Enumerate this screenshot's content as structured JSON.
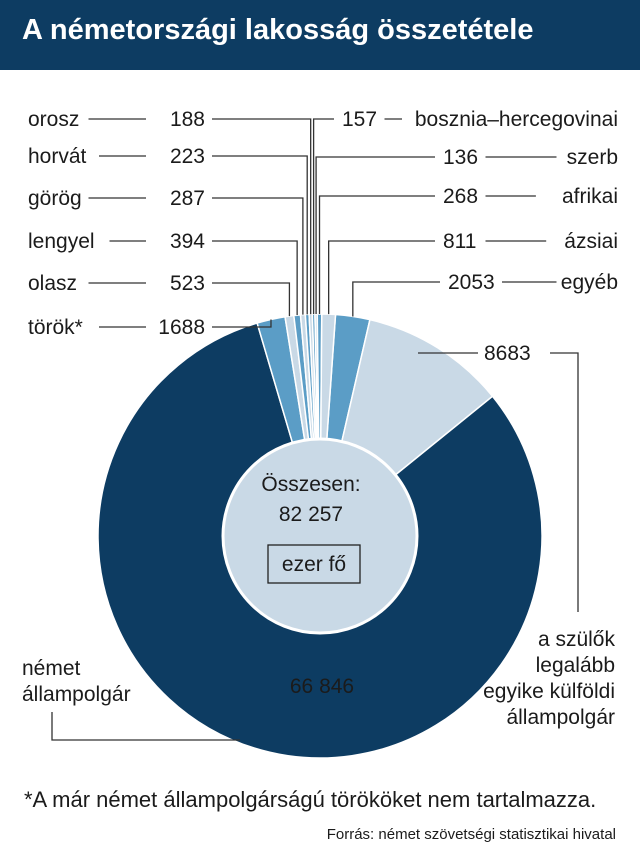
{
  "title": "A németországi lakosság összetétele",
  "footnote": "*A már német állampolgárságú törököket nem tartalmazza.",
  "source": "Forrás: német szövetségi statisztikai hivatal",
  "colors": {
    "header_bg": "#0d3c62",
    "german": "#0d3c62",
    "parent_foreign": "#c9d9e6",
    "accent": "#5b9dc6",
    "center": "#c9d9e6"
  },
  "chart_data": {
    "type": "pie",
    "variant": "donut",
    "unit": "ezer fő",
    "total_label": "Összesen:",
    "total_value": "82 257",
    "slices": [
      {
        "name": "egyéb",
        "value": 2053,
        "value_label": "2053",
        "color": "#5b9dc6"
      },
      {
        "name": "a szülők legalább egyike külföldi állampolgár",
        "value": 8683,
        "value_label": "8683",
        "color": "#c9d9e6"
      },
      {
        "name": "német állampolgár",
        "value": 66846,
        "value_label": "66 846",
        "color": "#0d3c62"
      },
      {
        "name": "török*",
        "value": 1688,
        "value_label": "1688",
        "color": "#5b9dc6"
      },
      {
        "name": "olasz",
        "value": 523,
        "value_label": "523",
        "color": "#c9d9e6"
      },
      {
        "name": "lengyel",
        "value": 394,
        "value_label": "394",
        "color": "#5b9dc6"
      },
      {
        "name": "görög",
        "value": 287,
        "value_label": "287",
        "color": "#c9d9e6"
      },
      {
        "name": "horvát",
        "value": 223,
        "value_label": "223",
        "color": "#5b9dc6"
      },
      {
        "name": "orosz",
        "value": 188,
        "value_label": "188",
        "color": "#c9d9e6"
      },
      {
        "name": "bosznia–hercegovinai",
        "value": 157,
        "value_label": "157",
        "color": "#5b9dc6"
      },
      {
        "name": "szerb",
        "value": 136,
        "value_label": "136",
        "color": "#c9d9e6"
      },
      {
        "name": "afrikai",
        "value": 268,
        "value_label": "268",
        "color": "#5b9dc6"
      },
      {
        "name": "ázsiai",
        "value": 811,
        "value_label": "811",
        "color": "#c9d9e6"
      }
    ]
  }
}
